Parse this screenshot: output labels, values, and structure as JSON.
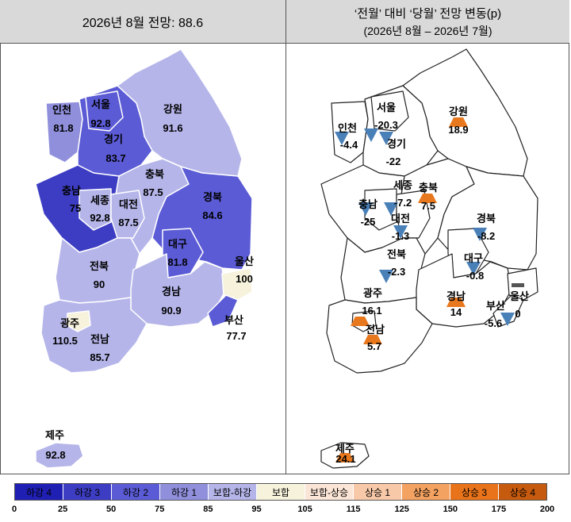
{
  "left_panel": {
    "title": "2026년 8월 전망: 88.6",
    "regions": [
      {
        "name": "서울",
        "value": "92.8",
        "color": "#5b5bd6"
      },
      {
        "name": "인천",
        "value": "81.8",
        "color": "#8f8fdc"
      },
      {
        "name": "경기",
        "value": "83.7",
        "color": "#5b5bd6"
      },
      {
        "name": "강원",
        "value": "91.6",
        "color": "#b5b5ea"
      },
      {
        "name": "충북",
        "value": "87.5",
        "color": "#b5b5ea"
      },
      {
        "name": "충남",
        "value": "75",
        "color": "#3d3dc4"
      },
      {
        "name": "세종",
        "value": "92.8",
        "color": "#b5b5ea"
      },
      {
        "name": "대전",
        "value": "87.5",
        "color": "#b5b5ea"
      },
      {
        "name": "경북",
        "value": "84.6",
        "color": "#5b5bd6"
      },
      {
        "name": "대구",
        "value": "81.8",
        "color": "#5b5bd6"
      },
      {
        "name": "전북",
        "value": "90",
        "color": "#b5b5ea"
      },
      {
        "name": "울산",
        "value": "100",
        "color": "#f6f2dc"
      },
      {
        "name": "경남",
        "value": "90.9",
        "color": "#b5b5ea"
      },
      {
        "name": "부산",
        "value": "77.7",
        "color": "#5b5bd6"
      },
      {
        "name": "광주",
        "value": "110.5",
        "color": "#f6f2dc"
      },
      {
        "name": "전남",
        "value": "85.7",
        "color": "#b5b5ea"
      },
      {
        "name": "제주",
        "value": "92.8",
        "color": "#b5b5ea"
      }
    ]
  },
  "right_panel": {
    "title_line1": "‘전월’ 대비 ‘당월’ 전망 변동(p)",
    "title_line2": "(2026년 8월 – 2026년 7월)",
    "regions": [
      {
        "name": "서울",
        "value": "-20.3",
        "direction": "down"
      },
      {
        "name": "인천",
        "value": "-4.4",
        "direction": "down"
      },
      {
        "name": "경기",
        "value": "-22",
        "direction": "down"
      },
      {
        "name": "강원",
        "value": "18.9",
        "direction": "up"
      },
      {
        "name": "세종",
        "value": "-7.2",
        "direction": "down"
      },
      {
        "name": "충북",
        "value": "7.5",
        "direction": "up"
      },
      {
        "name": "충남",
        "value": "-25",
        "direction": "down"
      },
      {
        "name": "대전",
        "value": "-1.3",
        "direction": "down"
      },
      {
        "name": "경북",
        "value": "-8.2",
        "direction": "down"
      },
      {
        "name": "전북",
        "value": "-2.3",
        "direction": "down"
      },
      {
        "name": "대구",
        "value": "-0.8",
        "direction": "down"
      },
      {
        "name": "울산",
        "value": "0",
        "direction": "flat"
      },
      {
        "name": "광주",
        "value": "16.1",
        "direction": "up"
      },
      {
        "name": "경남",
        "value": "14",
        "direction": "up"
      },
      {
        "name": "부산",
        "value": "-5.6",
        "direction": "down"
      },
      {
        "name": "전남",
        "value": "5.7",
        "direction": "up"
      },
      {
        "name": "제주",
        "value": "24.1",
        "direction": "up"
      }
    ]
  },
  "legend": {
    "categories": [
      {
        "label": "하강 4",
        "color": "#1f1fb4"
      },
      {
        "label": "하강 3",
        "color": "#3d3dc4"
      },
      {
        "label": "하강 2",
        "color": "#5b5bd6"
      },
      {
        "label": "하강 1",
        "color": "#8f8fdc"
      },
      {
        "label": "보합-하강",
        "color": "#b5b5ea"
      },
      {
        "label": "보합",
        "color": "#f6f2dc"
      },
      {
        "label": "보합-상승",
        "color": "#fbe5d6"
      },
      {
        "label": "상승 1",
        "color": "#f8c9a8"
      },
      {
        "label": "상승 2",
        "color": "#f4a261"
      },
      {
        "label": "상승 3",
        "color": "#e8731a"
      },
      {
        "label": "상승 4",
        "color": "#c65a0e"
      }
    ],
    "ticks": [
      "0",
      "25",
      "50",
      "75",
      "85",
      "95",
      "105",
      "115",
      "125",
      "150",
      "175",
      "200"
    ]
  },
  "colors": {
    "up_marker": "#e8781e",
    "down_marker": "#4a80b8",
    "flat_marker": "#555555"
  }
}
